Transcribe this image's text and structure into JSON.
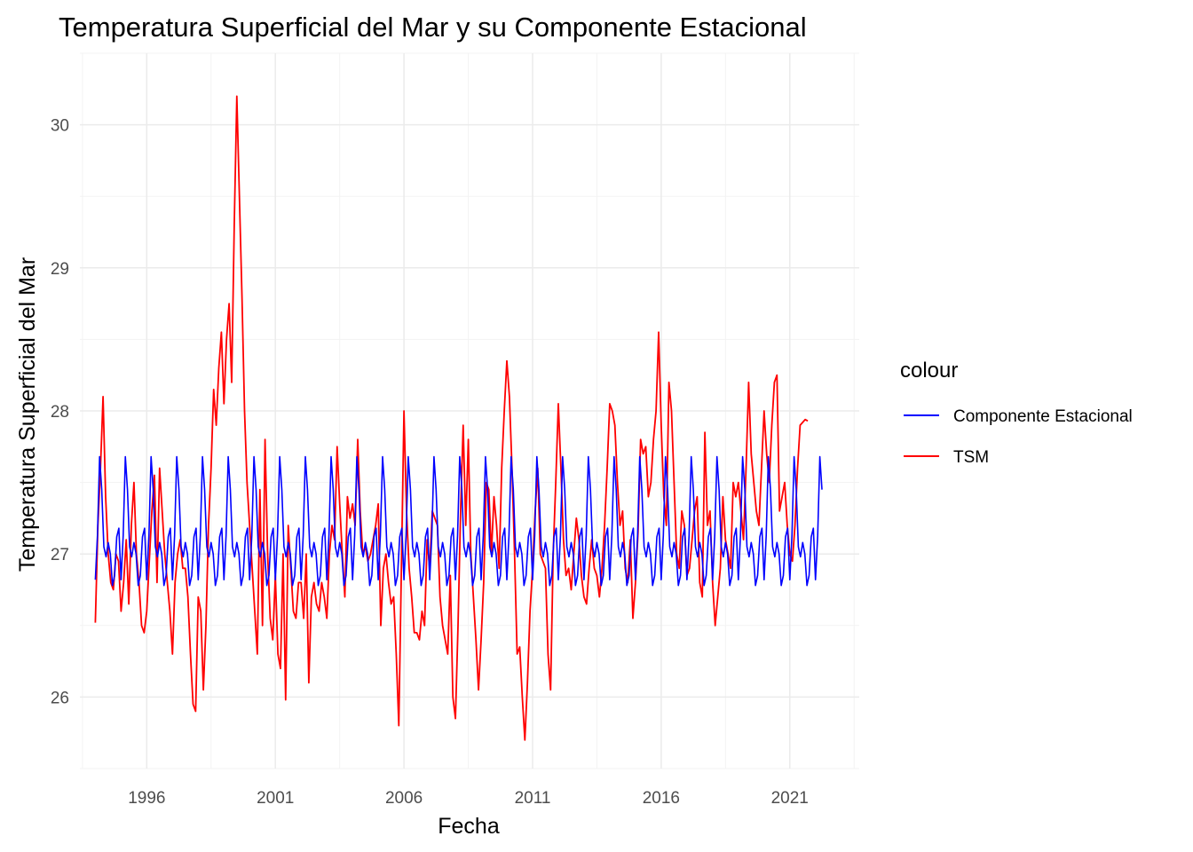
{
  "chart_data": {
    "type": "line",
    "title": "Temperatura Superficial del Mar y su Componente Estacional",
    "xlabel": "Fecha",
    "ylabel": "Temperatura Superficial del Mar",
    "xlim": [
      1993.4,
      2023.7
    ],
    "ylim": [
      25.5,
      30.5
    ],
    "x_ticks": [
      1996,
      2001,
      2006,
      2011,
      2016,
      2021
    ],
    "x_tick_labels": [
      "1996",
      "2001",
      "2006",
      "2011",
      "2016",
      "2021"
    ],
    "y_ticks": [
      26,
      27,
      28,
      29,
      30
    ],
    "y_tick_labels": [
      "26",
      "27",
      "28",
      "29",
      "30"
    ],
    "grid": true,
    "legend": {
      "title": "colour",
      "placement": "right",
      "entries": [
        {
          "label": "Componente Estacional",
          "color": "#0000ff"
        },
        {
          "label": "TSM",
          "color": "#ff0000"
        }
      ]
    },
    "series": [
      {
        "name": "Componente Estacional",
        "color": "#0000ff",
        "start_year": 1994.0,
        "step_years": 0.0833333,
        "cycle_pattern": [
          26.82,
          27.13,
          27.68,
          27.45,
          27.05,
          26.98,
          27.08,
          27.0,
          26.78,
          26.85,
          27.12,
          27.18
        ],
        "n_points": 340
      },
      {
        "name": "TSM",
        "color": "#ff0000",
        "points": [
          [
            1994.0,
            26.52
          ],
          [
            1994.1,
            27.2
          ],
          [
            1994.2,
            27.6
          ],
          [
            1994.3,
            28.1
          ],
          [
            1994.4,
            27.4
          ],
          [
            1994.5,
            27.0
          ],
          [
            1994.6,
            26.8
          ],
          [
            1994.7,
            26.75
          ],
          [
            1994.8,
            27.0
          ],
          [
            1994.9,
            26.95
          ],
          [
            1995.0,
            26.6
          ],
          [
            1995.1,
            26.8
          ],
          [
            1995.2,
            27.1
          ],
          [
            1995.3,
            26.65
          ],
          [
            1995.4,
            27.2
          ],
          [
            1995.5,
            27.5
          ],
          [
            1995.6,
            27.0
          ],
          [
            1995.7,
            26.8
          ],
          [
            1995.8,
            26.5
          ],
          [
            1995.9,
            26.45
          ],
          [
            1996.0,
            26.6
          ],
          [
            1996.1,
            26.95
          ],
          [
            1996.2,
            27.3
          ],
          [
            1996.3,
            27.55
          ],
          [
            1996.4,
            26.8
          ],
          [
            1996.5,
            27.6
          ],
          [
            1996.6,
            27.3
          ],
          [
            1996.7,
            27.0
          ],
          [
            1996.8,
            26.8
          ],
          [
            1996.9,
            26.6
          ],
          [
            1997.0,
            26.3
          ],
          [
            1997.1,
            26.8
          ],
          [
            1997.2,
            27.0
          ],
          [
            1997.3,
            27.1
          ],
          [
            1997.4,
            26.9
          ],
          [
            1997.5,
            26.9
          ],
          [
            1997.6,
            26.7
          ],
          [
            1997.7,
            26.3
          ],
          [
            1997.8,
            25.95
          ],
          [
            1997.9,
            25.9
          ],
          [
            1998.0,
            26.7
          ],
          [
            1998.1,
            26.6
          ],
          [
            1998.2,
            26.05
          ],
          [
            1998.3,
            26.5
          ],
          [
            1998.4,
            27.2
          ],
          [
            1998.5,
            27.6
          ],
          [
            1998.6,
            28.15
          ],
          [
            1998.7,
            27.9
          ],
          [
            1998.8,
            28.3
          ],
          [
            1998.9,
            28.55
          ],
          [
            1999.0,
            28.05
          ],
          [
            1999.1,
            28.5
          ],
          [
            1999.2,
            28.75
          ],
          [
            1999.3,
            28.2
          ],
          [
            1999.4,
            29.3
          ],
          [
            1999.5,
            30.2
          ],
          [
            1999.6,
            29.5
          ],
          [
            1999.7,
            28.8
          ],
          [
            1999.8,
            28.0
          ],
          [
            1999.9,
            27.5
          ],
          [
            2000.0,
            27.2
          ],
          [
            2000.1,
            26.9
          ],
          [
            2000.2,
            26.6
          ],
          [
            2000.3,
            26.3
          ],
          [
            2000.4,
            27.45
          ],
          [
            2000.5,
            26.5
          ],
          [
            2000.6,
            27.8
          ],
          [
            2000.7,
            27.0
          ],
          [
            2000.8,
            26.55
          ],
          [
            2000.9,
            26.4
          ],
          [
            2001.0,
            26.85
          ],
          [
            2001.1,
            26.3
          ],
          [
            2001.2,
            26.2
          ],
          [
            2001.3,
            27.0
          ],
          [
            2001.4,
            25.98
          ],
          [
            2001.5,
            27.2
          ],
          [
            2001.6,
            26.9
          ],
          [
            2001.7,
            26.6
          ],
          [
            2001.8,
            26.55
          ],
          [
            2001.9,
            26.8
          ],
          [
            2002.0,
            26.8
          ],
          [
            2002.1,
            26.55
          ],
          [
            2002.2,
            27.0
          ],
          [
            2002.3,
            26.1
          ],
          [
            2002.4,
            26.7
          ],
          [
            2002.5,
            26.8
          ],
          [
            2002.6,
            26.65
          ],
          [
            2002.7,
            26.6
          ],
          [
            2002.8,
            26.8
          ],
          [
            2002.9,
            26.7
          ],
          [
            2003.0,
            26.55
          ],
          [
            2003.1,
            27.0
          ],
          [
            2003.2,
            27.2
          ],
          [
            2003.3,
            27.1
          ],
          [
            2003.4,
            27.75
          ],
          [
            2003.5,
            27.35
          ],
          [
            2003.6,
            27.0
          ],
          [
            2003.7,
            26.7
          ],
          [
            2003.8,
            27.4
          ],
          [
            2003.9,
            27.25
          ],
          [
            2004.0,
            27.35
          ],
          [
            2004.1,
            27.2
          ],
          [
            2004.2,
            27.8
          ],
          [
            2004.3,
            27.3
          ],
          [
            2004.4,
            27.0
          ],
          [
            2004.5,
            27.05
          ],
          [
            2004.6,
            26.95
          ],
          [
            2004.7,
            27.0
          ],
          [
            2004.8,
            27.1
          ],
          [
            2004.9,
            27.2
          ],
          [
            2005.0,
            27.35
          ],
          [
            2005.1,
            26.5
          ],
          [
            2005.2,
            26.9
          ],
          [
            2005.3,
            27.0
          ],
          [
            2005.4,
            26.8
          ],
          [
            2005.5,
            26.65
          ],
          [
            2005.6,
            26.7
          ],
          [
            2005.7,
            26.3
          ],
          [
            2005.8,
            25.8
          ],
          [
            2005.9,
            26.9
          ],
          [
            2006.0,
            28.0
          ],
          [
            2006.1,
            27.3
          ],
          [
            2006.2,
            26.9
          ],
          [
            2006.3,
            26.7
          ],
          [
            2006.4,
            26.45
          ],
          [
            2006.5,
            26.45
          ],
          [
            2006.6,
            26.4
          ],
          [
            2006.7,
            26.6
          ],
          [
            2006.8,
            26.5
          ],
          [
            2006.9,
            27.1
          ],
          [
            2007.0,
            26.9
          ],
          [
            2007.1,
            27.3
          ],
          [
            2007.2,
            27.25
          ],
          [
            2007.3,
            27.2
          ],
          [
            2007.4,
            26.7
          ],
          [
            2007.5,
            26.5
          ],
          [
            2007.6,
            26.4
          ],
          [
            2007.7,
            26.3
          ],
          [
            2007.8,
            26.85
          ],
          [
            2007.9,
            26.0
          ],
          [
            2008.0,
            25.85
          ],
          [
            2008.1,
            26.5
          ],
          [
            2008.2,
            27.3
          ],
          [
            2008.3,
            27.9
          ],
          [
            2008.4,
            27.2
          ],
          [
            2008.5,
            27.8
          ],
          [
            2008.6,
            27.0
          ],
          [
            2008.7,
            26.7
          ],
          [
            2008.8,
            26.4
          ],
          [
            2008.9,
            26.05
          ],
          [
            2009.0,
            26.4
          ],
          [
            2009.1,
            26.8
          ],
          [
            2009.2,
            27.5
          ],
          [
            2009.3,
            27.45
          ],
          [
            2009.4,
            27.0
          ],
          [
            2009.5,
            27.4
          ],
          [
            2009.6,
            27.2
          ],
          [
            2009.7,
            26.9
          ],
          [
            2009.8,
            27.6
          ],
          [
            2009.9,
            28.0
          ],
          [
            2010.0,
            28.35
          ],
          [
            2010.1,
            28.1
          ],
          [
            2010.2,
            27.6
          ],
          [
            2010.3,
            27.0
          ],
          [
            2010.4,
            26.3
          ],
          [
            2010.5,
            26.35
          ],
          [
            2010.6,
            26.0
          ],
          [
            2010.7,
            25.7
          ],
          [
            2010.8,
            26.1
          ],
          [
            2010.9,
            26.6
          ],
          [
            2011.0,
            26.9
          ],
          [
            2011.1,
            27.3
          ],
          [
            2011.2,
            27.6
          ],
          [
            2011.3,
            27.0
          ],
          [
            2011.4,
            26.95
          ],
          [
            2011.5,
            26.9
          ],
          [
            2011.6,
            26.3
          ],
          [
            2011.7,
            26.05
          ],
          [
            2011.8,
            27.0
          ],
          [
            2011.9,
            27.5
          ],
          [
            2012.0,
            28.05
          ],
          [
            2012.1,
            27.6
          ],
          [
            2012.2,
            27.1
          ],
          [
            2012.3,
            26.85
          ],
          [
            2012.4,
            26.9
          ],
          [
            2012.5,
            26.75
          ],
          [
            2012.6,
            27.0
          ],
          [
            2012.7,
            27.25
          ],
          [
            2012.8,
            27.1
          ],
          [
            2012.9,
            26.85
          ],
          [
            2013.0,
            26.7
          ],
          [
            2013.1,
            26.65
          ],
          [
            2013.2,
            26.9
          ],
          [
            2013.3,
            27.1
          ],
          [
            2013.4,
            26.9
          ],
          [
            2013.5,
            26.85
          ],
          [
            2013.6,
            26.7
          ],
          [
            2013.7,
            26.9
          ],
          [
            2013.8,
            27.2
          ],
          [
            2013.9,
            27.6
          ],
          [
            2014.0,
            28.05
          ],
          [
            2014.1,
            28.0
          ],
          [
            2014.2,
            27.9
          ],
          [
            2014.3,
            27.5
          ],
          [
            2014.4,
            27.2
          ],
          [
            2014.5,
            27.3
          ],
          [
            2014.6,
            26.9
          ],
          [
            2014.7,
            26.8
          ],
          [
            2014.8,
            27.1
          ],
          [
            2014.9,
            26.55
          ],
          [
            2015.0,
            26.8
          ],
          [
            2015.1,
            27.15
          ],
          [
            2015.2,
            27.8
          ],
          [
            2015.3,
            27.7
          ],
          [
            2015.4,
            27.75
          ],
          [
            2015.5,
            27.4
          ],
          [
            2015.6,
            27.5
          ],
          [
            2015.7,
            27.8
          ],
          [
            2015.8,
            28.0
          ],
          [
            2015.9,
            28.55
          ],
          [
            2016.0,
            27.9
          ],
          [
            2016.1,
            27.4
          ],
          [
            2016.2,
            27.2
          ],
          [
            2016.3,
            28.2
          ],
          [
            2016.4,
            28.0
          ],
          [
            2016.5,
            27.5
          ],
          [
            2016.6,
            27.0
          ],
          [
            2016.7,
            26.9
          ],
          [
            2016.8,
            27.3
          ],
          [
            2016.9,
            27.2
          ],
          [
            2017.0,
            26.85
          ],
          [
            2017.1,
            26.9
          ],
          [
            2017.2,
            27.1
          ],
          [
            2017.3,
            27.3
          ],
          [
            2017.4,
            27.4
          ],
          [
            2017.5,
            26.8
          ],
          [
            2017.6,
            26.7
          ],
          [
            2017.7,
            27.85
          ],
          [
            2017.8,
            27.2
          ],
          [
            2017.9,
            27.3
          ],
          [
            2018.0,
            26.8
          ],
          [
            2018.1,
            26.5
          ],
          [
            2018.2,
            26.7
          ],
          [
            2018.3,
            26.9
          ],
          [
            2018.4,
            27.4
          ],
          [
            2018.5,
            27.1
          ],
          [
            2018.6,
            27.0
          ],
          [
            2018.7,
            26.9
          ],
          [
            2018.8,
            27.5
          ],
          [
            2018.9,
            27.4
          ],
          [
            2019.0,
            27.5
          ],
          [
            2019.1,
            27.3
          ],
          [
            2019.2,
            27.1
          ],
          [
            2019.3,
            27.6
          ],
          [
            2019.4,
            28.2
          ],
          [
            2019.5,
            27.7
          ],
          [
            2019.6,
            27.5
          ],
          [
            2019.7,
            27.3
          ],
          [
            2019.8,
            27.2
          ],
          [
            2019.9,
            27.6
          ],
          [
            2020.0,
            28.0
          ],
          [
            2020.1,
            27.7
          ],
          [
            2020.2,
            27.5
          ],
          [
            2020.3,
            27.9
          ],
          [
            2020.4,
            28.2
          ],
          [
            2020.5,
            28.25
          ],
          [
            2020.6,
            27.3
          ],
          [
            2020.7,
            27.4
          ],
          [
            2020.8,
            27.5
          ],
          [
            2020.9,
            27.2
          ],
          [
            2021.0,
            27.0
          ],
          [
            2021.1,
            26.95
          ],
          [
            2021.2,
            27.2
          ],
          [
            2021.3,
            27.6
          ],
          [
            2021.4,
            27.9
          ],
          [
            2021.5,
            27.92
          ],
          [
            2021.6,
            27.94
          ],
          [
            2021.7,
            27.93
          ]
        ]
      }
    ]
  }
}
